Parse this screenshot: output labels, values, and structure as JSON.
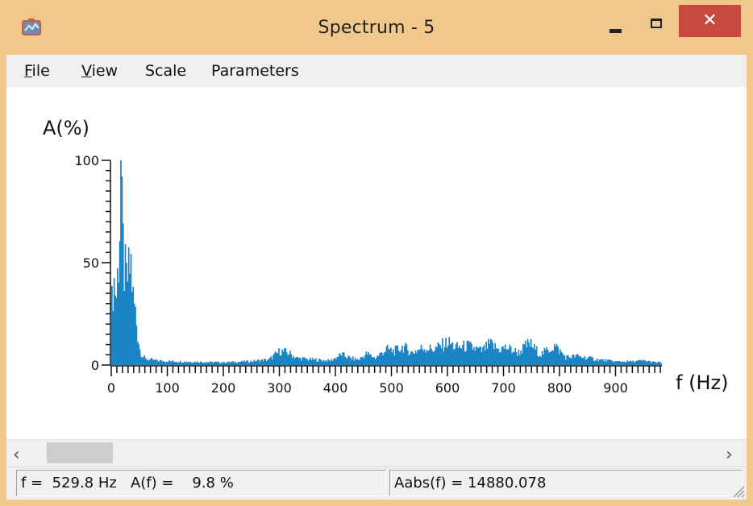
{
  "window": {
    "title": "Spectrum - 5",
    "close_glyph": "✕",
    "icons": [
      "app-icon",
      "minimize-icon",
      "maximize-icon",
      "close-icon"
    ],
    "colors": {
      "titlebar": "#f0c88b",
      "close": "#c84a3f",
      "bars": "#1a84c7"
    }
  },
  "menu": {
    "items": [
      {
        "label": "File",
        "accel": "F"
      },
      {
        "label": "View",
        "accel": "V"
      },
      {
        "label": "Scale"
      },
      {
        "label": "Parameters"
      }
    ]
  },
  "chart_data": {
    "type": "bar",
    "ylabel": "A(%)",
    "xlabel": "f (Hz)",
    "yticks": [
      "0",
      "50",
      "100"
    ],
    "xticks": [
      "0",
      "100",
      "200",
      "300",
      "400",
      "500",
      "600",
      "700",
      "800",
      "900"
    ],
    "ylim": [
      0,
      100
    ],
    "xlim": [
      0,
      980
    ],
    "envelope_points": [
      [
        0,
        35
      ],
      [
        3,
        50
      ],
      [
        8,
        40
      ],
      [
        12,
        62
      ],
      [
        16,
        100
      ],
      [
        19,
        72
      ],
      [
        22,
        55
      ],
      [
        26,
        48
      ],
      [
        30,
        52
      ],
      [
        34,
        58
      ],
      [
        38,
        38
      ],
      [
        42,
        30
      ],
      [
        46,
        18
      ],
      [
        50,
        9
      ],
      [
        55,
        5
      ],
      [
        60,
        3.5
      ],
      [
        70,
        3
      ],
      [
        80,
        2.5
      ],
      [
        100,
        2.2
      ],
      [
        150,
        1.8
      ],
      [
        200,
        1.5
      ],
      [
        240,
        2
      ],
      [
        260,
        2.5
      ],
      [
        280,
        3
      ],
      [
        300,
        8
      ],
      [
        315,
        7
      ],
      [
        330,
        4
      ],
      [
        360,
        3
      ],
      [
        390,
        2.5
      ],
      [
        410,
        6
      ],
      [
        425,
        4
      ],
      [
        440,
        3
      ],
      [
        455,
        6.5
      ],
      [
        470,
        4
      ],
      [
        490,
        9
      ],
      [
        505,
        8
      ],
      [
        520,
        10.5
      ],
      [
        535,
        7
      ],
      [
        555,
        10
      ],
      [
        575,
        9
      ],
      [
        600,
        13
      ],
      [
        615,
        10
      ],
      [
        635,
        11
      ],
      [
        660,
        8
      ],
      [
        675,
        12
      ],
      [
        690,
        9
      ],
      [
        705,
        10
      ],
      [
        725,
        7
      ],
      [
        745,
        12.5
      ],
      [
        765,
        6
      ],
      [
        790,
        11
      ],
      [
        810,
        4.5
      ],
      [
        830,
        5
      ],
      [
        850,
        4
      ],
      [
        870,
        3
      ],
      [
        900,
        2
      ],
      [
        930,
        2
      ],
      [
        950,
        2.5
      ],
      [
        970,
        1.5
      ],
      [
        980,
        1.5
      ]
    ]
  },
  "scroll": {
    "left_arrow": "‹",
    "right_arrow": "›",
    "position": 0
  },
  "status": {
    "cursor": "f =  529.8 Hz   A(f) =    9.8 %",
    "abs": "Aabs(f) = 14880.078"
  }
}
